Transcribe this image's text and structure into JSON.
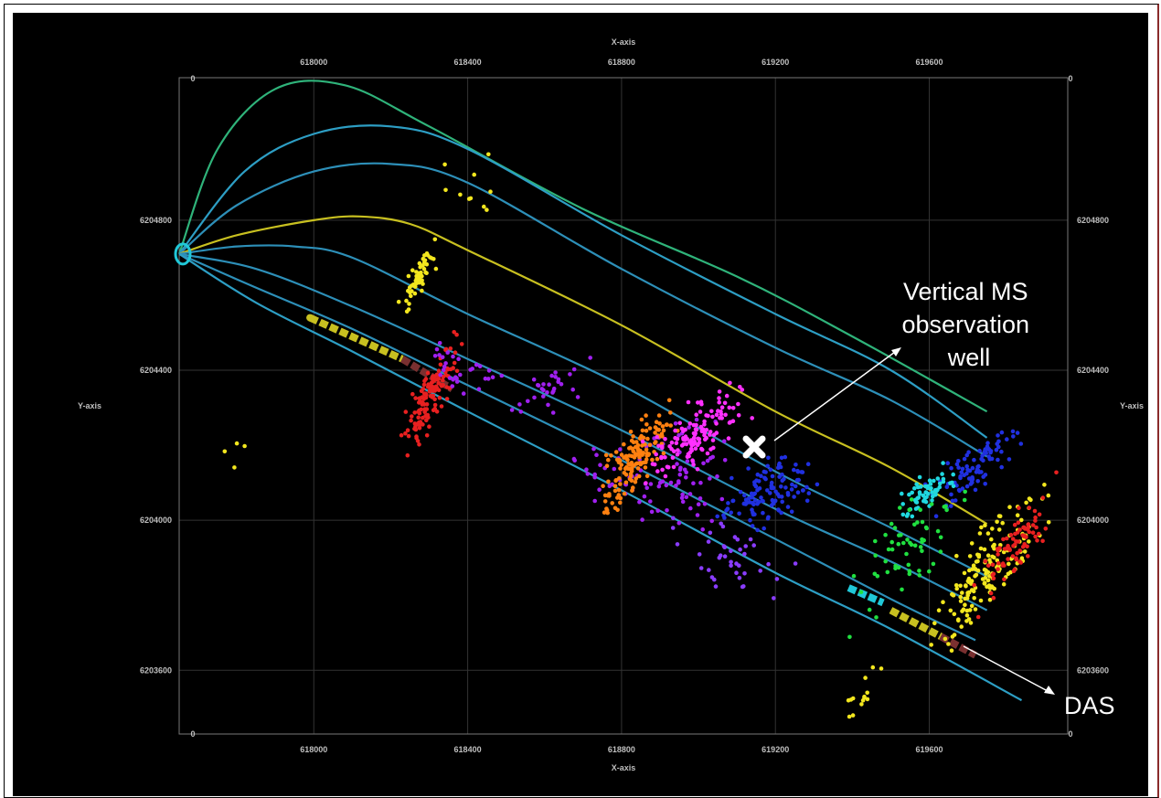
{
  "chart_data": {
    "type": "scatter",
    "xlabel": "X-axis",
    "ylabel": "Y-axis",
    "x_ticks": [
      "618000",
      "618400",
      "618800",
      "619200",
      "619600"
    ],
    "y_ticks": [
      "6204800",
      "6204400",
      "6204000",
      "6203600"
    ],
    "corner_zero": "0",
    "xlim": [
      617650,
      619960
    ],
    "ylim": [
      6203430,
      6205180
    ],
    "grid": true,
    "wells": [
      {
        "color": "#2fb37a",
        "points": [
          [
            617650,
            6204710
          ],
          [
            617750,
            6204990
          ],
          [
            617900,
            6205150
          ],
          [
            618080,
            6205160
          ],
          [
            618300,
            6205050
          ],
          [
            618700,
            6204830
          ],
          [
            619100,
            6204650
          ],
          [
            619400,
            6204490
          ],
          [
            619750,
            6204290
          ]
        ]
      },
      {
        "color": "#2d9ec4",
        "points": [
          [
            617650,
            6204710
          ],
          [
            617820,
            6204930
          ],
          [
            618000,
            6205030
          ],
          [
            618200,
            6205050
          ],
          [
            618400,
            6204990
          ],
          [
            618800,
            6204760
          ],
          [
            619200,
            6204550
          ],
          [
            619500,
            6204400
          ],
          [
            619750,
            6204220
          ]
        ]
      },
      {
        "color": "#2d8fb8",
        "points": [
          [
            617650,
            6204710
          ],
          [
            617800,
            6204840
          ],
          [
            618000,
            6204930
          ],
          [
            618200,
            6204950
          ],
          [
            618400,
            6204900
          ],
          [
            618800,
            6204670
          ],
          [
            619200,
            6204460
          ],
          [
            619500,
            6204320
          ],
          [
            619750,
            6204170
          ]
        ]
      },
      {
        "color": "#c8c020",
        "points": [
          [
            617650,
            6204710
          ],
          [
            617800,
            6204760
          ],
          [
            618000,
            6204800
          ],
          [
            618120,
            6204810
          ],
          [
            618250,
            6204790
          ],
          [
            618400,
            6204720
          ],
          [
            618800,
            6204520
          ],
          [
            619200,
            6204290
          ],
          [
            619500,
            6204140
          ],
          [
            619750,
            6203990
          ]
        ]
      },
      {
        "color": "#2d8fb8",
        "points": [
          [
            617650,
            6204710
          ],
          [
            617800,
            6204730
          ],
          [
            617950,
            6204730
          ],
          [
            618100,
            6204700
          ],
          [
            618400,
            6204550
          ],
          [
            618800,
            6204360
          ],
          [
            619200,
            6204130
          ],
          [
            619500,
            6203980
          ],
          [
            619750,
            6203850
          ]
        ]
      },
      {
        "color": "#2d8fb8",
        "points": [
          [
            617650,
            6204710
          ],
          [
            617850,
            6204670
          ],
          [
            618100,
            6204570
          ],
          [
            618400,
            6204430
          ],
          [
            618800,
            6204240
          ],
          [
            619200,
            6204030
          ],
          [
            619500,
            6203890
          ],
          [
            619750,
            6203760
          ]
        ]
      },
      {
        "color": "#2d8fb8",
        "points": [
          [
            617650,
            6204710
          ],
          [
            617850,
            6204620
          ],
          [
            618100,
            6204510
          ],
          [
            618400,
            6204360
          ],
          [
            618800,
            6204160
          ],
          [
            619200,
            6203950
          ],
          [
            619500,
            6203790
          ],
          [
            619720,
            6203680
          ]
        ]
      },
      {
        "color": "#2d9ec4",
        "points": [
          [
            617650,
            6204710
          ],
          [
            617850,
            6204580
          ],
          [
            618100,
            6204450
          ],
          [
            618400,
            6204290
          ],
          [
            618800,
            6204080
          ],
          [
            619200,
            6203860
          ],
          [
            619500,
            6203710
          ],
          [
            619840,
            6203520
          ]
        ]
      }
    ],
    "event_clusters": [
      {
        "color": "#f2e61e",
        "n": 55,
        "cx": 618270,
        "cy": 6204640,
        "sx": 45,
        "sy": 60,
        "slope": 1.6
      },
      {
        "color": "#f2e61e",
        "n": 10,
        "cx": 618420,
        "cy": 6204900,
        "sx": 60,
        "sy": 120,
        "slope": 0
      },
      {
        "color": "#f2e61e",
        "n": 4,
        "cx": 617820,
        "cy": 6204180,
        "sx": 60,
        "sy": 30,
        "slope": 0
      },
      {
        "color": "#e82020",
        "n": 140,
        "cx": 618300,
        "cy": 6204330,
        "sx": 55,
        "sy": 110,
        "slope": 1.7
      },
      {
        "color": "#a020f0",
        "n": 30,
        "cx": 618380,
        "cy": 6204400,
        "sx": 80,
        "sy": 70,
        "slope": -0.3
      },
      {
        "color": "#a020f0",
        "n": 30,
        "cx": 618620,
        "cy": 6204350,
        "sx": 70,
        "sy": 70,
        "slope": 0.4
      },
      {
        "color": "#a020f0",
        "n": 90,
        "cx": 618900,
        "cy": 6204120,
        "sx": 160,
        "sy": 120,
        "slope": 0.1
      },
      {
        "color": "#ff8010",
        "n": 150,
        "cx": 618830,
        "cy": 6204150,
        "sx": 80,
        "sy": 120,
        "slope": 1.2
      },
      {
        "color": "#ff30ff",
        "n": 130,
        "cx": 619000,
        "cy": 6204230,
        "sx": 100,
        "sy": 80,
        "slope": 0.6
      },
      {
        "color": "#2030e0",
        "n": 120,
        "cx": 619180,
        "cy": 6204080,
        "sx": 90,
        "sy": 90,
        "slope": 0.3
      },
      {
        "color": "#8a3cff",
        "n": 40,
        "cx": 619080,
        "cy": 6203900,
        "sx": 120,
        "sy": 90,
        "slope": -0.4
      },
      {
        "color": "#2030e0",
        "n": 90,
        "cx": 619720,
        "cy": 6204140,
        "sx": 90,
        "sy": 50,
        "slope": 0.8
      },
      {
        "color": "#20d8e0",
        "n": 60,
        "cx": 619600,
        "cy": 6204080,
        "sx": 60,
        "sy": 40,
        "slope": 0.6
      },
      {
        "color": "#20e040",
        "n": 60,
        "cx": 619540,
        "cy": 6203920,
        "sx": 110,
        "sy": 140,
        "slope": 0.8
      },
      {
        "color": "#f2e61e",
        "n": 160,
        "cx": 619750,
        "cy": 6203880,
        "sx": 110,
        "sy": 140,
        "slope": 1.1
      },
      {
        "color": "#e82020",
        "n": 80,
        "cx": 619830,
        "cy": 6203930,
        "sx": 80,
        "sy": 120,
        "slope": 1.2
      },
      {
        "color": "#f2e61e",
        "n": 14,
        "cx": 619420,
        "cy": 6203530,
        "sx": 50,
        "sy": 60,
        "slope": 1.4
      }
    ],
    "das_segments": [
      {
        "color": "#c8c020",
        "x1": 617990,
        "y1": 6204540,
        "x2": 618230,
        "y2": 6204430
      },
      {
        "color": "#7a3030",
        "x1": 618230,
        "y1": 6204430,
        "x2": 618360,
        "y2": 6204350
      },
      {
        "color": "#20c8d8",
        "x1": 619390,
        "y1": 6203820,
        "x2": 619480,
        "y2": 6203780
      },
      {
        "color": "#c8c020",
        "x1": 619500,
        "y1": 6203760,
        "x2": 619630,
        "y2": 6203690
      },
      {
        "color": "#7a3030",
        "x1": 619630,
        "y1": 6203690,
        "x2": 619720,
        "y2": 6203640
      }
    ],
    "annotations": [
      {
        "id": "ms_well",
        "lines": [
          "Vertical MS",
          "observation",
          "well"
        ]
      },
      {
        "id": "das",
        "lines": [
          "DAS"
        ]
      }
    ]
  }
}
